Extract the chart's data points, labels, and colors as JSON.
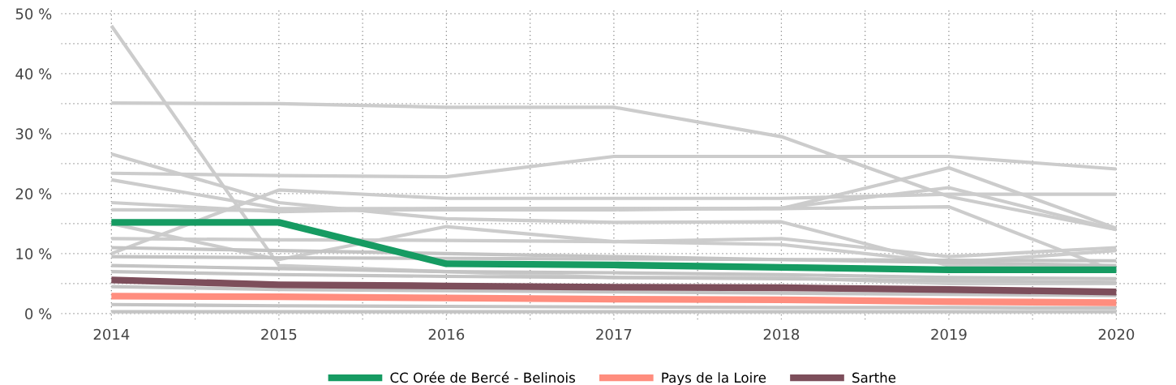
{
  "chart_data": {
    "type": "line",
    "x": [
      2014,
      2015,
      2016,
      2017,
      2018,
      2019,
      2020
    ],
    "xlim": [
      2013.7,
      2020.3
    ],
    "xticks": [
      2014,
      {
        "value": 2014.5,
        "label": null
      },
      2015,
      {
        "value": 2015.5,
        "label": null
      },
      2016,
      {
        "value": 2016.5,
        "label": null
      },
      2017,
      {
        "value": 2017.5,
        "label": null
      },
      2018,
      {
        "value": 2018.5,
        "label": null
      },
      2019,
      {
        "value": 2019.5,
        "label": null
      },
      2020
    ],
    "ylim": [
      -1,
      51
    ],
    "yticks": [
      {
        "value": 0,
        "label": "0 %"
      },
      {
        "value": 5,
        "label": null
      },
      {
        "value": 10,
        "label": "10 %"
      },
      {
        "value": 15,
        "label": null
      },
      {
        "value": 20,
        "label": "20 %"
      },
      {
        "value": 25,
        "label": null
      },
      {
        "value": 30,
        "label": "30 %"
      },
      {
        "value": 35,
        "label": null
      },
      {
        "value": 40,
        "label": "40 %"
      },
      {
        "value": 45,
        "label": null
      },
      {
        "value": 50,
        "label": "50 %"
      }
    ],
    "grid": true,
    "legend": "bottom",
    "marker": "none",
    "line_style": "solid",
    "series": [
      {
        "color": "#cccccc",
        "values": [
          48,
          8,
          7,
          6,
          6,
          5,
          5
        ]
      },
      {
        "color": "#cccccc",
        "values": [
          35.1,
          35.0,
          34.4,
          34.4,
          29.5,
          19.5,
          14
        ]
      },
      {
        "color": "#cccccc",
        "values": [
          23.4,
          23,
          22.8,
          26.2,
          26.2,
          26.2,
          24.1
        ]
      },
      {
        "color": "#cccccc",
        "values": [
          26.6,
          18.5,
          15.8,
          15.2,
          15.3,
          8,
          7.5
        ]
      },
      {
        "color": "#cccccc",
        "values": [
          22.3,
          17.5,
          17.5,
          17.5,
          17.5,
          24.3,
          14.2
        ]
      },
      {
        "color": "#cccccc",
        "values": [
          18.5,
          17,
          17.5,
          17.5,
          17.5,
          17.8,
          7
        ]
      },
      {
        "color": "#cccccc",
        "values": [
          10,
          20.6,
          19.2,
          19.2,
          19.2,
          19.9,
          19.9
        ]
      },
      {
        "color": "#cccccc",
        "values": [
          17.3,
          17.2,
          17.3,
          17.3,
          17.6,
          21,
          14
        ]
      },
      {
        "color": "#cccccc",
        "values": [
          15,
          9,
          14.5,
          12,
          12.5,
          9.5,
          11
        ]
      },
      {
        "color": "#cccccc",
        "values": [
          12.5,
          12.3,
          12.2,
          12,
          11.5,
          8.5,
          10.5
        ]
      },
      {
        "color": "#c4c4c4",
        "values": [
          11,
          10.5,
          10,
          9.5,
          9,
          8.5,
          8
        ]
      },
      {
        "color": "#c4c4c4",
        "values": [
          9.5,
          9.3,
          9.2,
          9.1,
          9.0,
          8.9,
          8.8
        ]
      },
      {
        "color": "#c4c4c4",
        "values": [
          8,
          7.5,
          7,
          6.8,
          6.5,
          6,
          5.8
        ]
      },
      {
        "color": "#c4c4c4",
        "values": [
          7,
          6.5,
          6.2,
          6,
          5.8,
          5.5,
          5.2
        ]
      },
      {
        "color": "#c4c4c4",
        "values": [
          4.5,
          4,
          3.8,
          3.6,
          3.4,
          3.2,
          3
        ]
      },
      {
        "color": "#c4c4c4",
        "values": [
          1.5,
          1.3,
          1.2,
          1.1,
          1,
          1,
          0.9
        ]
      },
      {
        "color": "#c4c4c4",
        "values": [
          0.3,
          0.3,
          0.3,
          0.3,
          0.3,
          0.3,
          0.3
        ]
      },
      {
        "name": "CC Orée de Bercé - Belinois",
        "color": "#169b62",
        "values": [
          15.2,
          15.2,
          8.3,
          8.1,
          7.7,
          7.3,
          7.3
        ]
      },
      {
        "name": "Pays de la Loire",
        "color": "#ff8d7e",
        "values": [
          2.9,
          2.8,
          2.6,
          2.4,
          2.3,
          2.0,
          1.8
        ]
      },
      {
        "name": "Sarthe",
        "color": "#7d4e5b",
        "values": [
          5.6,
          4.8,
          4.6,
          4.4,
          4.3,
          4.0,
          3.6
        ]
      }
    ]
  }
}
